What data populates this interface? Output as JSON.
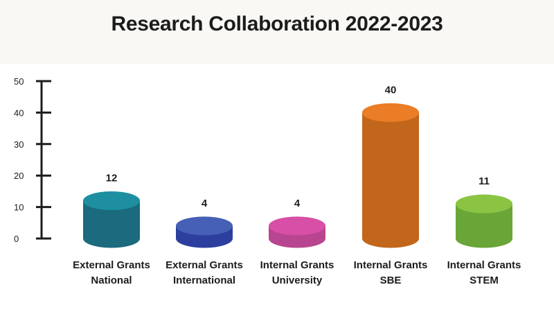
{
  "chart_data": {
    "type": "bar",
    "title": "Research Collaboration 2022-2023",
    "categories": [
      [
        "External Grants",
        "National"
      ],
      [
        "External Grants",
        "International"
      ],
      [
        "Internal Grants",
        "University"
      ],
      [
        "Internal Grants",
        "SBE"
      ],
      [
        "Internal Grants",
        "STEM"
      ]
    ],
    "values": [
      12,
      4,
      4,
      40,
      11
    ],
    "colors": [
      {
        "side": "#1b6a7e",
        "top": "#1d8fa0"
      },
      {
        "side": "#2d3f9e",
        "top": "#4560b4"
      },
      {
        "side": "#b84590",
        "top": "#d74fa6"
      },
      {
        "side": "#c2661b",
        "top": "#ea7d25"
      },
      {
        "side": "#6aa637",
        "top": "#8bc443"
      }
    ],
    "ylim": [
      0,
      50
    ],
    "yticks": [
      0,
      10,
      20,
      30,
      40,
      50
    ],
    "xlabel": "",
    "ylabel": "",
    "grid": false,
    "legend": "none"
  }
}
